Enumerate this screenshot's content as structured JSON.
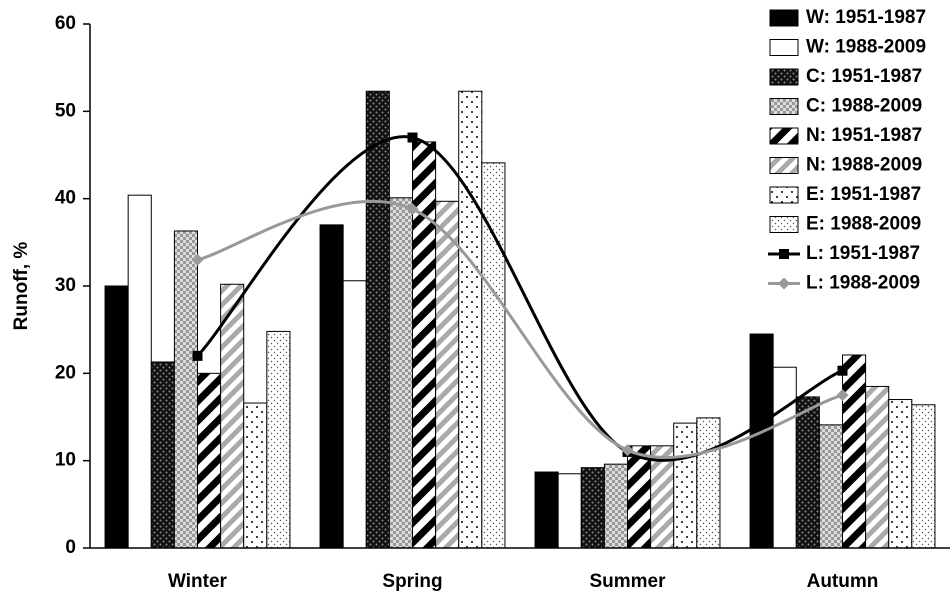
{
  "chart_data": {
    "type": "bar",
    "y_label": "Runoff, %",
    "categories": [
      "Winter",
      "Spring",
      "Summer",
      "Autumn"
    ],
    "ylim": [
      0,
      60
    ],
    "yticks": [
      0,
      10,
      20,
      30,
      40,
      50,
      60
    ],
    "legend": "top-right",
    "series": [
      {
        "name": "W: 1951-1987",
        "type": "bar",
        "pattern": "solid",
        "color": "#000000",
        "values": [
          30,
          37,
          8.7,
          24.5
        ]
      },
      {
        "name": "W: 1988-2009",
        "type": "bar",
        "pattern": "none",
        "color": "#ffffff",
        "values": [
          40.4,
          30.6,
          8.5,
          20.7
        ]
      },
      {
        "name": "C: 1951-1987",
        "type": "bar",
        "pattern": "dark-check",
        "color": "#222222",
        "values": [
          21.3,
          52.3,
          9.2,
          17.3
        ]
      },
      {
        "name": "C: 1988-2009",
        "type": "bar",
        "pattern": "light-check",
        "color": "#bbbbbb",
        "values": [
          36.3,
          40.1,
          9.6,
          14.1
        ]
      },
      {
        "name": "N: 1951-1987",
        "type": "bar",
        "pattern": "black-stripe",
        "color": "#000000",
        "values": [
          20,
          46.5,
          11.7,
          22.1
        ]
      },
      {
        "name": "N: 1988-2009",
        "type": "bar",
        "pattern": "grey-stripe",
        "color": "#aaaaaa",
        "values": [
          30.2,
          39.7,
          11.7,
          18.5
        ]
      },
      {
        "name": "E: 1951-1987",
        "type": "bar",
        "pattern": "sparse-dot",
        "color": "#000000",
        "values": [
          16.6,
          52.3,
          14.3,
          17
        ]
      },
      {
        "name": "E: 1988-2009",
        "type": "bar",
        "pattern": "dense-dot",
        "color": "#555555",
        "values": [
          24.8,
          44.1,
          14.9,
          16.4
        ]
      },
      {
        "name": "L: 1951-1987",
        "type": "line",
        "marker": "square",
        "color": "#000000",
        "values": [
          22,
          47,
          11,
          20.3
        ]
      },
      {
        "name": "L: 1988-2009",
        "type": "line",
        "marker": "diamond",
        "color": "#999999",
        "values": [
          33,
          38.8,
          11.2,
          17.5
        ]
      }
    ]
  }
}
